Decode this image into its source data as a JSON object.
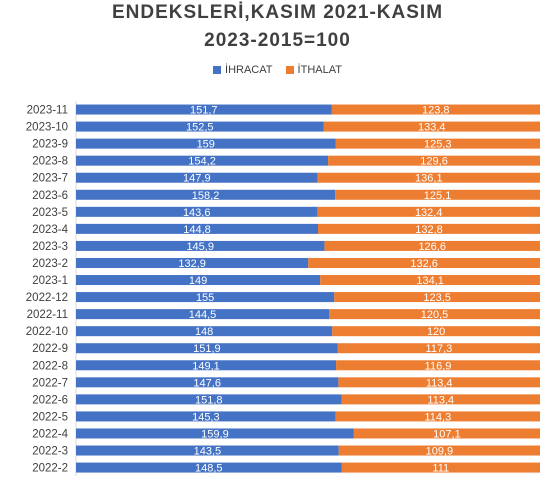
{
  "chart_data": {
    "type": "bar",
    "orientation": "horizontal",
    "stacking": "percent",
    "title": "ENDEKSLERİ,KASIM  2021-KASIM",
    "subtitle": "2023-2015=100",
    "legend_position": "top",
    "grid": false,
    "categories": [
      "2023-11",
      "2023-10",
      "2023-9",
      "2023-8",
      "2023-7",
      "2023-6",
      "2023-5",
      "2023-4",
      "2023-3",
      "2023-2",
      "2023-1",
      "2022-12",
      "2022-11",
      "2022-10",
      "2022-9",
      "2022-8",
      "2022-7",
      "2022-6",
      "2022-5",
      "2022-4",
      "2022-3",
      "2022-2"
    ],
    "series": [
      {
        "name": "İHRACAT",
        "color": "#4472c4",
        "values": [
          151.7,
          152.5,
          159,
          154.2,
          147.9,
          158.2,
          143.6,
          144.8,
          145.9,
          132.9,
          149,
          155,
          144.5,
          148,
          151.9,
          149.1,
          147.6,
          151.8,
          145.3,
          159.9,
          143.5,
          148.5
        ],
        "labels": [
          "151,7",
          "152,5",
          "159",
          "154,2",
          "147,9",
          "158,2",
          "143,6",
          "144,8",
          "145,9",
          "132,9",
          "149",
          "155",
          "144,5",
          "148",
          "151,9",
          "149,1",
          "147,6",
          "151,8",
          "145,3",
          "159,9",
          "143,5",
          "148,5"
        ]
      },
      {
        "name": "İTHALAT",
        "color": "#ed7d31",
        "values": [
          123.8,
          133.4,
          125.3,
          129.6,
          136.1,
          125.1,
          132.4,
          132.8,
          126.6,
          132.6,
          134.1,
          123.5,
          120.5,
          120,
          117.3,
          116.9,
          113.4,
          113.4,
          114.3,
          107.1,
          109.9,
          111
        ],
        "labels": [
          "123,8",
          "133,4",
          "125,3",
          "129,6",
          "136,1",
          "125,1",
          "132,4",
          "132,8",
          "126,6",
          "132,6",
          "134,1",
          "123,5",
          "120,5",
          "120",
          "117,3",
          "116,9",
          "113,4",
          "113,4",
          "114,3",
          "107,1",
          "109,9",
          "111"
        ]
      }
    ]
  }
}
